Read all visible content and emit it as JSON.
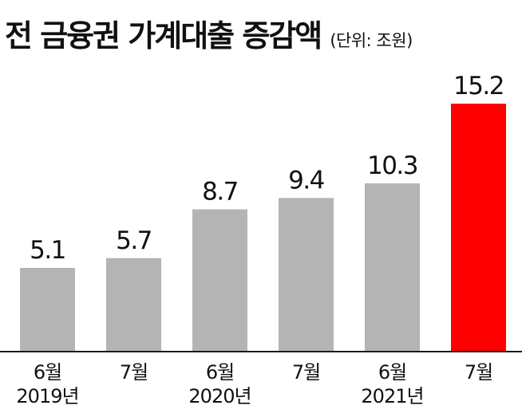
{
  "title": {
    "main": "전 금융권 가계대출 증감액",
    "unit": "(단위: 조원)"
  },
  "colors": {
    "bar_default": "#b4b4b4",
    "bar_highlight": "#ff0000",
    "axis": "#1a1a1a",
    "text": "#111111"
  },
  "chart_data": {
    "type": "bar",
    "categories": [
      "6월\n2019년",
      "7월",
      "6월\n2020년",
      "7월",
      "6월\n2021년",
      "7월"
    ],
    "category_lines": [
      [
        "6월",
        "2019년"
      ],
      [
        "7월",
        ""
      ],
      [
        "6월",
        "2020년"
      ],
      [
        "7월",
        ""
      ],
      [
        "6월",
        "2021년"
      ],
      [
        "7월",
        ""
      ]
    ],
    "values": [
      5.1,
      5.7,
      8.7,
      9.4,
      10.3,
      15.2
    ],
    "value_labels": [
      "5.1",
      "5.7",
      "8.7",
      "9.4",
      "10.3",
      "15.2"
    ],
    "highlight_index": 5,
    "ylim": [
      0,
      15.2
    ],
    "grid": false,
    "title": "전 금융권 가계대출 증감액",
    "unit": "(단위: 조원)"
  }
}
